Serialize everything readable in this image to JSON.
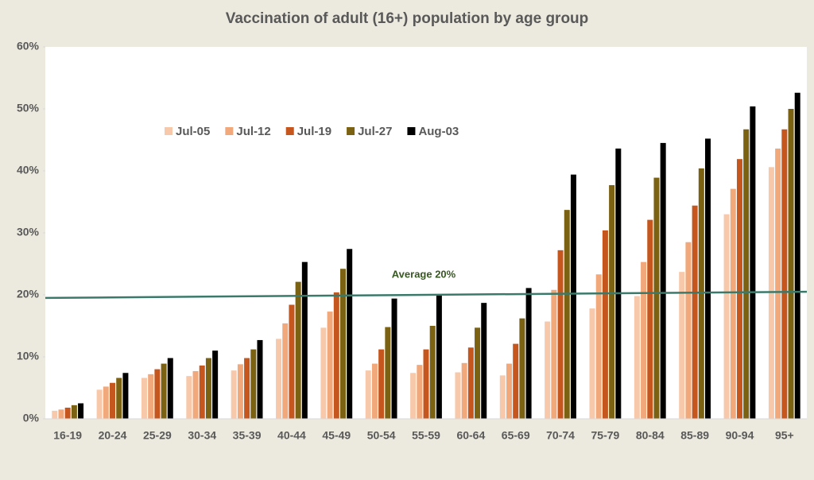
{
  "chart_data": {
    "type": "bar",
    "title": "Vaccination of adult (16+) population by age group",
    "categories": [
      "16-19",
      "20-24",
      "25-29",
      "30-34",
      "35-39",
      "40-44",
      "45-49",
      "50-54",
      "55-59",
      "60-64",
      "65-69",
      "70-74",
      "75-79",
      "80-84",
      "85-89",
      "90-94",
      "95+"
    ],
    "series": [
      {
        "name": "Jul-05",
        "color": "#f7c9aa",
        "values": [
          1.3,
          4.7,
          6.6,
          6.9,
          7.8,
          12.9,
          14.7,
          7.8,
          7.4,
          7.5,
          7.0,
          15.7,
          17.8,
          19.8,
          23.7,
          33.0,
          40.6
        ]
      },
      {
        "name": "Jul-12",
        "color": "#f1a97c",
        "values": [
          1.5,
          5.2,
          7.2,
          7.7,
          8.8,
          15.4,
          17.3,
          8.9,
          8.7,
          9.0,
          8.9,
          20.8,
          23.3,
          25.3,
          28.5,
          37.1,
          43.6
        ]
      },
      {
        "name": "Jul-19",
        "color": "#c5561d",
        "values": [
          1.8,
          5.8,
          8.0,
          8.6,
          9.8,
          18.4,
          20.4,
          11.2,
          11.2,
          11.5,
          12.1,
          27.2,
          30.4,
          32.1,
          34.4,
          41.9,
          46.7
        ]
      },
      {
        "name": "Jul-27",
        "color": "#7b6112",
        "values": [
          2.2,
          6.6,
          8.9,
          9.8,
          11.2,
          22.1,
          24.2,
          14.8,
          15.0,
          14.7,
          16.2,
          33.7,
          37.7,
          38.9,
          40.4,
          46.7,
          50.0
        ]
      },
      {
        "name": "Aug-03",
        "color": "#000000",
        "values": [
          2.5,
          7.4,
          9.8,
          11.0,
          12.7,
          25.3,
          27.4,
          19.4,
          20.0,
          18.7,
          21.1,
          39.4,
          43.6,
          44.5,
          45.2,
          50.4,
          52.6
        ]
      }
    ],
    "average_line": {
      "label": "Average 20%",
      "values": [
        19.5,
        20.5
      ],
      "color": "#3b7a6b"
    },
    "ylim": [
      0,
      60
    ],
    "yticks": [
      {
        "value": 0,
        "label": "0%"
      },
      {
        "value": 10,
        "label": "10%"
      },
      {
        "value": 20,
        "label": "20%"
      },
      {
        "value": 30,
        "label": "30%"
      },
      {
        "value": 40,
        "label": "40%"
      },
      {
        "value": 50,
        "label": "50%"
      },
      {
        "value": 60,
        "label": "60%"
      }
    ],
    "legend": "upper left"
  }
}
